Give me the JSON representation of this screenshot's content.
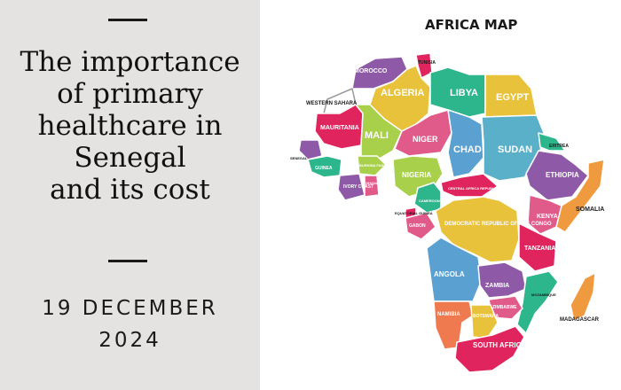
{
  "article": {
    "title_lines": [
      "The importance",
      "of primary",
      "healthcare in",
      "Senegal",
      "and its cost"
    ],
    "date_lines": [
      "19 DECEMBER",
      "2024"
    ]
  },
  "map": {
    "title": "AFRICA MAP",
    "countries": [
      {
        "key": "morocco",
        "label": "MOROCCO",
        "color": "#8e5aa8"
      },
      {
        "key": "tunisia",
        "label": "TUNISIA",
        "color": "#e0245e"
      },
      {
        "key": "algeria",
        "label": "ALGERIA",
        "color": "#e8c23a"
      },
      {
        "key": "libya",
        "label": "LIBYA",
        "color": "#2db58b"
      },
      {
        "key": "egypt",
        "label": "EGYPT",
        "color": "#e8c23a"
      },
      {
        "key": "western_sahara",
        "label": "WESTERN SAHARA",
        "color": "#ffffff"
      },
      {
        "key": "mauritania",
        "label": "MAURITANIA",
        "color": "#e0245e"
      },
      {
        "key": "mali",
        "label": "MALI",
        "color": "#a8d04a"
      },
      {
        "key": "niger",
        "label": "NIGER",
        "color": "#e05a8a"
      },
      {
        "key": "chad",
        "label": "CHAD",
        "color": "#5aa0d0"
      },
      {
        "key": "sudan",
        "label": "SUDAN",
        "color": "#5ab0c8"
      },
      {
        "key": "eritrea",
        "label": "ERITREA",
        "color": "#2db58b"
      },
      {
        "key": "ethiopia",
        "label": "ETHIOPIA",
        "color": "#8e5aa8"
      },
      {
        "key": "somalia",
        "label": "SOMALIA",
        "color": "#f09a40"
      },
      {
        "key": "senegal",
        "label": "SENEGAL",
        "color": "#8e5aa8"
      },
      {
        "key": "guinea",
        "label": "GUINEA",
        "color": "#2db58b"
      },
      {
        "key": "burkina_faso",
        "label": "BURKINA FASO",
        "color": "#a8d04a"
      },
      {
        "key": "ivory_coast",
        "label": "IVORY COAST",
        "color": "#8e5aa8"
      },
      {
        "key": "ghana",
        "label": "GHANA",
        "color": "#e05a8a"
      },
      {
        "key": "nigeria",
        "label": "NIGERIA",
        "color": "#a8d04a"
      },
      {
        "key": "cameroon",
        "label": "CAMEROON",
        "color": "#2db58b"
      },
      {
        "key": "car",
        "label": "CENTRAL AFRICA REPUBLIC",
        "color": "#e0245e"
      },
      {
        "key": "equatorial_guinea",
        "label": "EQUATORIAL GUINEA",
        "color": "#e0245e"
      },
      {
        "key": "gabon",
        "label": "GABON",
        "color": "#e05a8a"
      },
      {
        "key": "drc",
        "label": "DEMOCRATIC REPUBLIC OF THE CONGO",
        "color": "#e8c23a"
      },
      {
        "key": "kenya",
        "label": "KENYA",
        "color": "#e05a8a"
      },
      {
        "key": "tanzania",
        "label": "TANZANIA",
        "color": "#e0245e"
      },
      {
        "key": "angola",
        "label": "ANGOLA",
        "color": "#5aa0d0"
      },
      {
        "key": "zambia",
        "label": "ZAMBIA",
        "color": "#8e5aa8"
      },
      {
        "key": "mozambique",
        "label": "MOZAMBIQUE",
        "color": "#2db58b"
      },
      {
        "key": "zimbabwe",
        "label": "ZIMBABWE",
        "color": "#e05a8a"
      },
      {
        "key": "namibia",
        "label": "NAMIBIA",
        "color": "#f07a50"
      },
      {
        "key": "botswana",
        "label": "BOTSWANA",
        "color": "#e8c23a"
      },
      {
        "key": "south_africa",
        "label": "SOUTH AFRICA",
        "color": "#e0245e"
      },
      {
        "key": "madagascar",
        "label": "MADAGASCAR",
        "color": "#f09a40"
      }
    ]
  }
}
